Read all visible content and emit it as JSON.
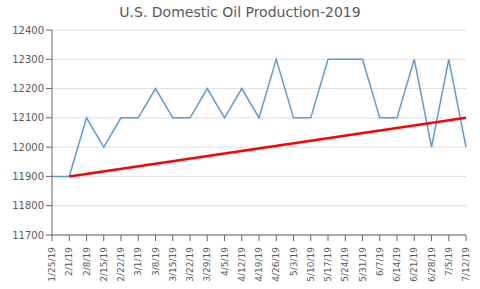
{
  "chart_data": {
    "type": "line",
    "title": "U.S. Domestic Oil Production-2019",
    "categories": [
      "1/25/19",
      "2/1/19",
      "2/8/19",
      "2/15/19",
      "2/22/19",
      "3/1/19",
      "3/8/19",
      "3/15/19",
      "3/22/19",
      "3/29/19",
      "4/5/19",
      "4/12/19",
      "4/19/19",
      "4/26/19",
      "5/3/19",
      "5/10/19",
      "5/17/19",
      "5/24/19",
      "5/31/19",
      "6/7/19",
      "6/14/19",
      "6/21/19",
      "6/28/19",
      "7/5/19",
      "7/12/19"
    ],
    "series": [
      {
        "color": "#5B9BD5",
        "values": [
          11900,
          11900,
          12100,
          12000,
          12100,
          12100,
          12200,
          12100,
          12100,
          12200,
          12100,
          12200,
          12100,
          12300,
          12100,
          12100,
          12300,
          12300,
          12300,
          12100,
          12100,
          12300,
          12000,
          12300,
          12000
        ]
      },
      {
        "color": "#FF0000",
        "values": [
          null,
          11900,
          null,
          null,
          null,
          null,
          null,
          null,
          null,
          null,
          null,
          null,
          null,
          null,
          null,
          null,
          null,
          null,
          null,
          null,
          null,
          null,
          null,
          null,
          12100
        ]
      }
    ],
    "ylim": [
      11700,
      12400
    ],
    "yticks": [
      11700,
      11800,
      11900,
      12000,
      12100,
      12200,
      12300,
      12400
    ],
    "grid": true
  }
}
